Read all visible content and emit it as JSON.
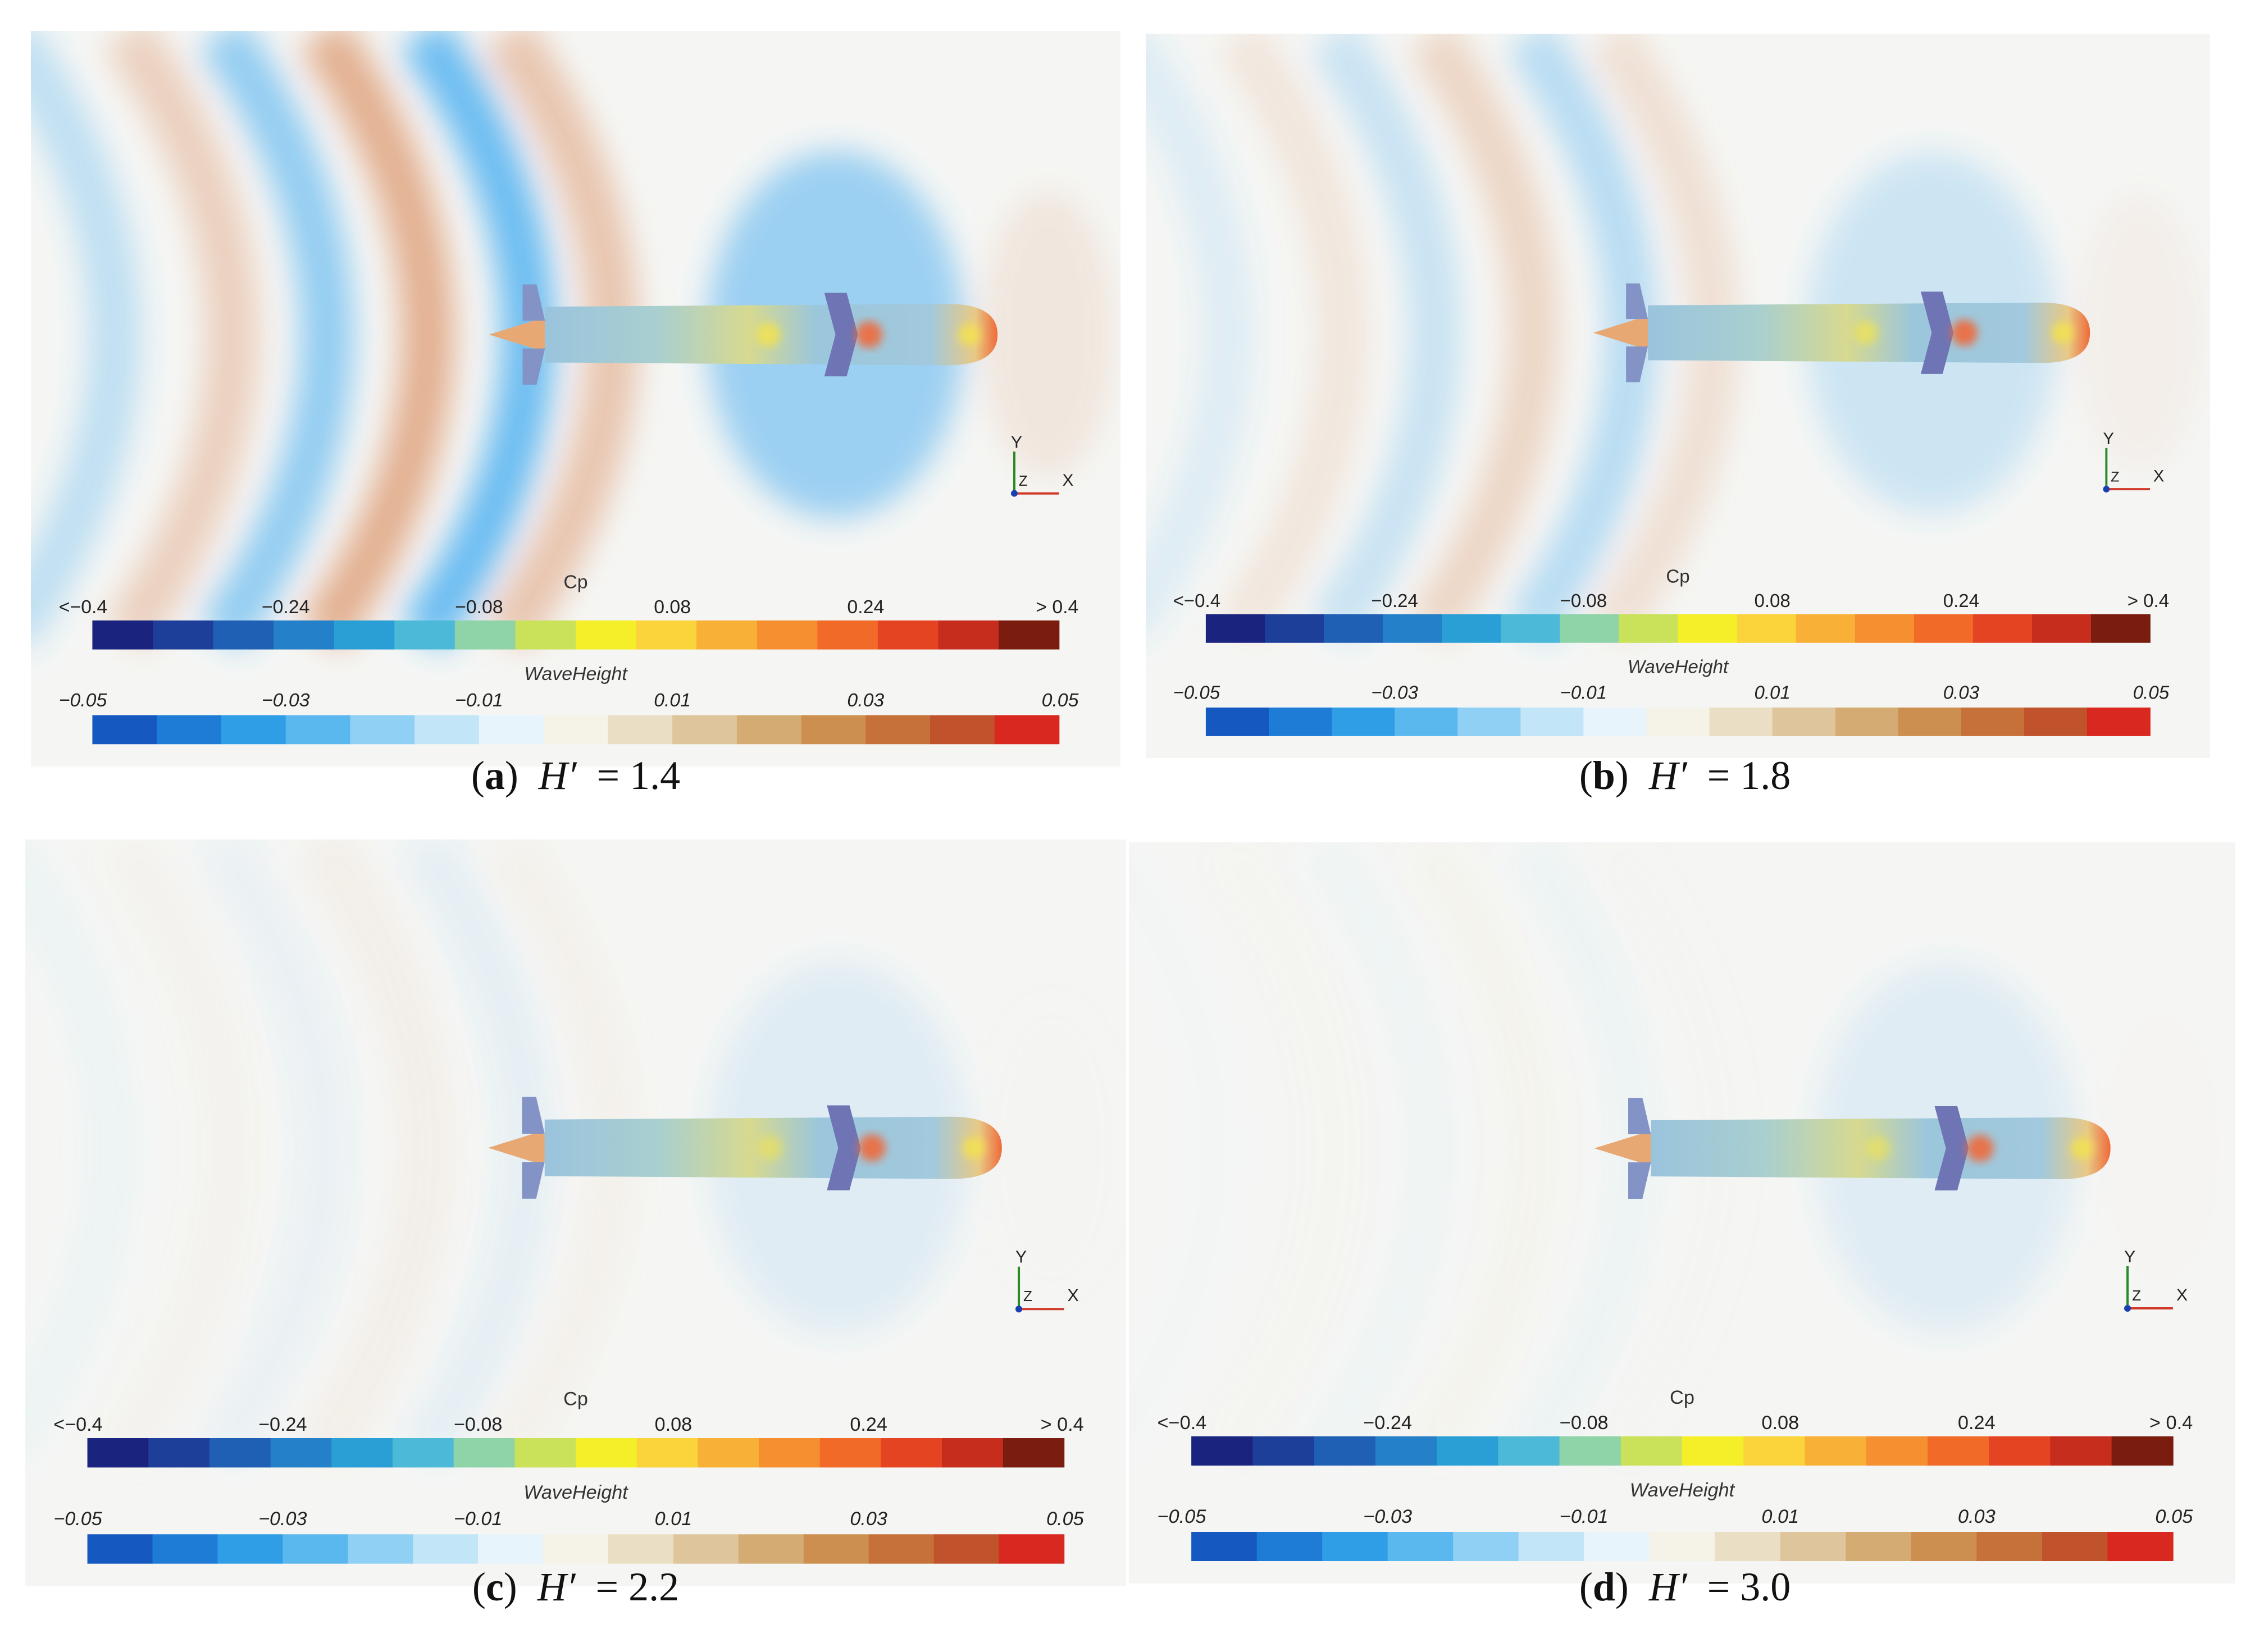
{
  "panels": [
    {
      "id": "a",
      "letter": "a",
      "hprime_label": "H′",
      "value": "1.4",
      "wave_strength": 1.0,
      "hull_tint": 1.0
    },
    {
      "id": "b",
      "letter": "b",
      "hprime_label": "H′",
      "value": "1.8",
      "wave_strength": 0.45,
      "hull_tint": 0.8
    },
    {
      "id": "c",
      "letter": "c",
      "hprime_label": "H′",
      "value": "2.2",
      "wave_strength": 0.12,
      "hull_tint": 0.7
    },
    {
      "id": "d",
      "letter": "d",
      "hprime_label": "H′",
      "value": "3.0",
      "wave_strength": 0.04,
      "hull_tint": 0.7
    }
  ],
  "colorbars": {
    "cp": {
      "title": "Cp",
      "ticks": [
        "<−0.4",
        "−0.24",
        "−0.08",
        "0.08",
        "0.24",
        "> 0.4"
      ],
      "colors": [
        "#1a237e",
        "#1d3f9a",
        "#1f5fb4",
        "#2480c8",
        "#2a9fd6",
        "#4cb9d8",
        "#8fd3a8",
        "#c9e25a",
        "#f5ef2a",
        "#fbd33a",
        "#f9b037",
        "#f68f2f",
        "#f26a28",
        "#e44422",
        "#c62d1c",
        "#7a1d0e"
      ]
    },
    "waveheight": {
      "title": "WaveHeight",
      "ticks": [
        "−0.05",
        "−0.03",
        "−0.01",
        "0.01",
        "0.03",
        "0.05"
      ],
      "colors": [
        "#1558c0",
        "#1e7bd6",
        "#2f9ee6",
        "#5bb8ee",
        "#8fd0f4",
        "#c2e5f8",
        "#e8f4fb",
        "#f5f2e8",
        "#eadfc5",
        "#dec59c",
        "#d5ab74",
        "#cd8f4f",
        "#c7713a",
        "#c0522c",
        "#d8281f"
      ]
    }
  },
  "axes": {
    "x_label": "X",
    "y_label": "Y",
    "z_label": "Z"
  },
  "colors": {
    "background": "#f5f6f4",
    "wave_crest": "#d98a5a",
    "wave_trough": "#3fa9f0"
  }
}
